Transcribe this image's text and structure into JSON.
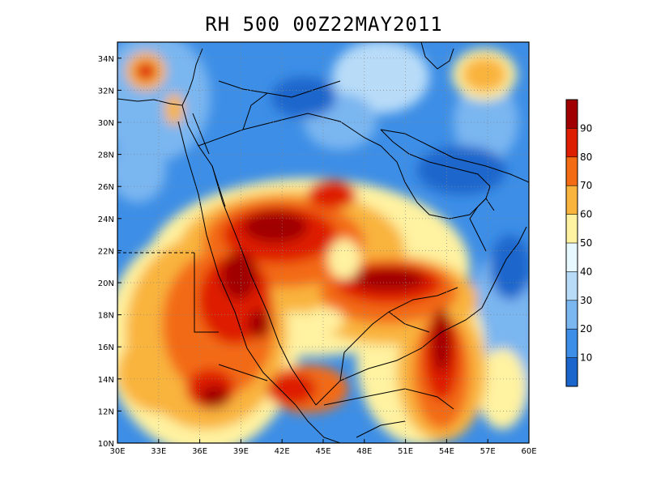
{
  "title": "RH 500 00Z22MAY2011",
  "map": {
    "lon_range": [
      30,
      60
    ],
    "lat_range": [
      10,
      35
    ],
    "lon_ticks": [
      {
        "value": 30,
        "label": "30E"
      },
      {
        "value": 33,
        "label": "33E"
      },
      {
        "value": 36,
        "label": "36E"
      },
      {
        "value": 39,
        "label": "39E"
      },
      {
        "value": 42,
        "label": "42E"
      },
      {
        "value": 45,
        "label": "45E"
      },
      {
        "value": 48,
        "label": "48E"
      },
      {
        "value": 51,
        "label": "51E"
      },
      {
        "value": 54,
        "label": "54E"
      },
      {
        "value": 57,
        "label": "57E"
      },
      {
        "value": 60,
        "label": "60E"
      }
    ],
    "lat_ticks": [
      {
        "value": 10,
        "label": "10N"
      },
      {
        "value": 12,
        "label": "12N"
      },
      {
        "value": 14,
        "label": "14N"
      },
      {
        "value": 16,
        "label": "16N"
      },
      {
        "value": 18,
        "label": "18N"
      },
      {
        "value": 20,
        "label": "20N"
      },
      {
        "value": 22,
        "label": "22N"
      },
      {
        "value": 24,
        "label": "24N"
      },
      {
        "value": 26,
        "label": "26N"
      },
      {
        "value": 28,
        "label": "28N"
      },
      {
        "value": 30,
        "label": "30N"
      },
      {
        "value": 32,
        "label": "32N"
      },
      {
        "value": 34,
        "label": "34N"
      }
    ],
    "gridlines": "dotted"
  },
  "colorbar": {
    "levels": [
      10,
      20,
      30,
      40,
      50,
      60,
      70,
      80,
      90
    ],
    "labels": [
      "10",
      "20",
      "30",
      "40",
      "50",
      "60",
      "70",
      "80",
      "90"
    ],
    "colors": [
      "#1a66cc",
      "#3d8ee6",
      "#7ab6f0",
      "#b8dcf8",
      "#e8f8ff",
      "#fff2a0",
      "#f9b43e",
      "#f36b12",
      "#de1e00",
      "#a10000"
    ]
  }
}
